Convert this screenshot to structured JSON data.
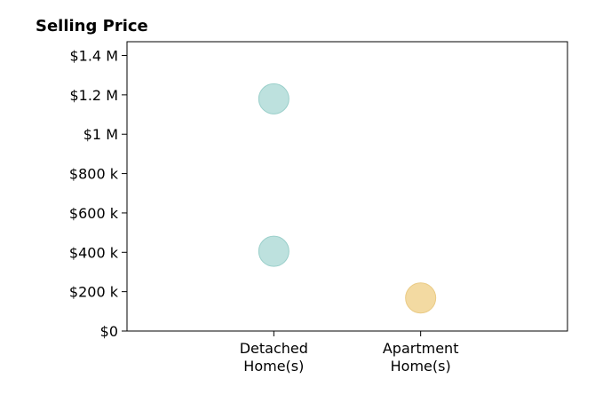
{
  "chart_data": {
    "type": "scatter",
    "title": "Selling Price",
    "xlabel": "",
    "ylabel": "",
    "categories": [
      [
        "Detached",
        "Home(s)"
      ],
      [
        "Apartment",
        "Home(s)"
      ]
    ],
    "xlim": [
      0,
      3
    ],
    "x_positions": [
      1,
      2
    ],
    "ylim": [
      0,
      1470000
    ],
    "yticks": [
      0,
      200000,
      400000,
      600000,
      800000,
      1000000,
      1200000,
      1400000
    ],
    "ytick_labels": [
      "$0",
      "$200 k",
      "$400 k",
      "$600 k",
      "$800 k",
      "$1 M",
      "$1.2 M",
      "$1.4 M"
    ],
    "grid": false,
    "legend": "none",
    "series": [
      {
        "category": "Detached Home(s)",
        "color": "#A7D7D3",
        "edge_color": "#9ACFCA",
        "points": [
          {
            "x": 1,
            "y": 1180000
          },
          {
            "x": 1,
            "y": 405000
          }
        ]
      },
      {
        "category": "Apartment Home(s)",
        "color": "#EFCE83",
        "edge_color": "#EACB86",
        "points": [
          {
            "x": 2,
            "y": 168000
          }
        ]
      }
    ]
  }
}
